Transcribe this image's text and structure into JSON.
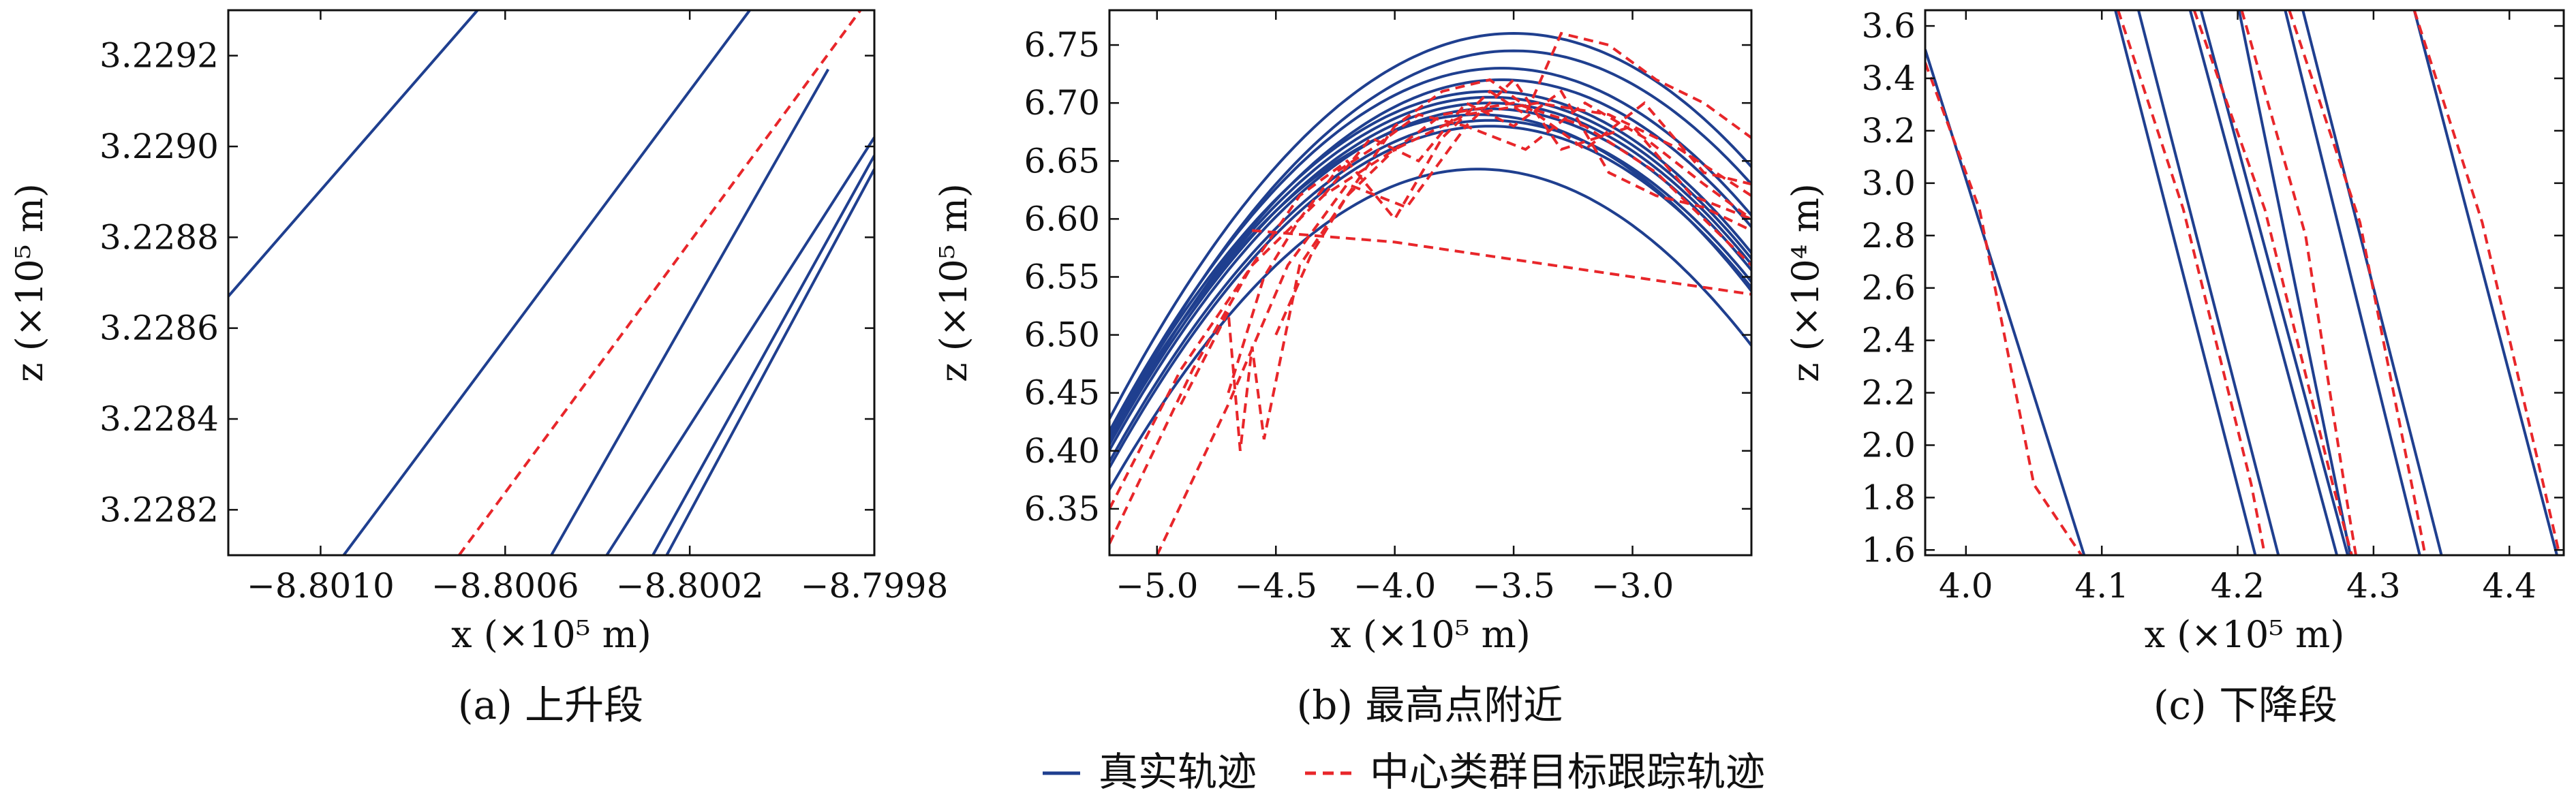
{
  "colors": {
    "true_track": "#1f3f8f",
    "center_track": "#e8262a",
    "axis": "#111111"
  },
  "legend": {
    "true_label": "真实轨迹",
    "center_label": "中心类群目标跟踪轨迹",
    "placement": "bottom-center"
  },
  "chart_data": [
    {
      "type": "line",
      "caption": "(a) 上升段",
      "xlabel": "x (×10⁵ m)",
      "ylabel": "z (×10⁵ m)",
      "xlim": [
        -8.8012,
        -8.7998
      ],
      "ylim": [
        3.2281,
        3.2293
      ],
      "xticks": [
        -8.801,
        -8.8006,
        -8.8002,
        -8.7998
      ],
      "xtick_labels": [
        "−8.8010",
        "−8.8006",
        "−8.8002",
        "−8.7998"
      ],
      "yticks": [
        3.2282,
        3.2284,
        3.2286,
        3.2288,
        3.229,
        3.2292
      ],
      "ytick_labels": [
        "3.2282",
        "3.2284",
        "3.2286",
        "3.2288",
        "3.2290",
        "3.2292"
      ],
      "grid": false,
      "series": [
        {
          "kind": "true",
          "x": [
            -8.8012,
            -8.80066
          ],
          "y": [
            3.22867,
            3.2293
          ]
        },
        {
          "kind": "true",
          "x": [
            -8.80095,
            -8.80007
          ],
          "y": [
            3.2281,
            3.2293
          ]
        },
        {
          "kind": "true",
          "x": [
            -8.8005,
            -8.7999
          ],
          "y": [
            3.2281,
            3.22917
          ]
        },
        {
          "kind": "true",
          "x": [
            -8.80038,
            -8.7998
          ],
          "y": [
            3.2281,
            3.22902
          ]
        },
        {
          "kind": "true",
          "x": [
            -8.80028,
            -8.7998
          ],
          "y": [
            3.2281,
            3.22898
          ]
        },
        {
          "kind": "true",
          "x": [
            -8.80025,
            -8.7998
          ],
          "y": [
            3.2281,
            3.22895
          ]
        },
        {
          "kind": "center",
          "x": [
            -8.8007,
            -8.79983
          ],
          "y": [
            3.2281,
            3.2293
          ]
        }
      ]
    },
    {
      "type": "line",
      "caption": "(b) 最高点附近",
      "xlabel": "x (×10⁵ m)",
      "ylabel": "z (×10⁵ m)",
      "xlim": [
        -5.2,
        -2.5
      ],
      "ylim": [
        6.31,
        6.78
      ],
      "xticks": [
        -5.0,
        -4.5,
        -4.0,
        -3.5,
        -3.0
      ],
      "xtick_labels": [
        "−5.0",
        "−4.5",
        "−4.0",
        "−3.5",
        "−3.0"
      ],
      "yticks": [
        6.35,
        6.4,
        6.45,
        6.5,
        6.55,
        6.6,
        6.65,
        6.7,
        6.75
      ],
      "ytick_labels": [
        "6.35",
        "6.40",
        "6.45",
        "6.50",
        "6.55",
        "6.60",
        "6.65",
        "6.70",
        "6.75"
      ],
      "grid": false,
      "true_parabolas": [
        {
          "peak_x": -3.5,
          "peak_z": 6.76
        },
        {
          "peak_x": -3.5,
          "peak_z": 6.745
        },
        {
          "peak_x": -3.55,
          "peak_z": 6.73
        },
        {
          "peak_x": -3.55,
          "peak_z": 6.72
        },
        {
          "peak_x": -3.6,
          "peak_z": 6.71
        },
        {
          "peak_x": -3.6,
          "peak_z": 6.705
        },
        {
          "peak_x": -3.6,
          "peak_z": 6.7
        },
        {
          "peak_x": -3.6,
          "peak_z": 6.695
        },
        {
          "peak_x": -3.65,
          "peak_z": 6.69
        },
        {
          "peak_x": -3.6,
          "peak_z": 6.685
        },
        {
          "peak_x": -3.6,
          "peak_z": 6.68
        },
        {
          "peak_x": -3.65,
          "peak_z": 6.643
        }
      ],
      "center_series": [
        {
          "x": [
            -5.2,
            -4.9,
            -4.6,
            -4.3,
            -4.0,
            -3.7,
            -3.4,
            -3.1,
            -2.8,
            -2.5
          ],
          "y": [
            6.35,
            6.47,
            6.56,
            6.62,
            6.66,
            6.69,
            6.7,
            6.69,
            6.66,
            6.62
          ]
        },
        {
          "x": [
            -5.2,
            -4.85,
            -4.6,
            -4.4,
            -4.2,
            -4.0,
            -3.8,
            -3.6,
            -3.45,
            -3.3,
            -3.1,
            -2.9,
            -2.7,
            -2.5
          ],
          "y": [
            6.32,
            6.47,
            6.56,
            6.62,
            6.65,
            6.6,
            6.67,
            6.71,
            6.69,
            6.76,
            6.75,
            6.72,
            6.7,
            6.67
          ]
        },
        {
          "x": [
            -5.0,
            -4.7,
            -4.45,
            -4.2,
            -3.95,
            -3.7,
            -3.45,
            -3.2,
            -2.95,
            -2.7,
            -2.5
          ],
          "y": [
            6.31,
            6.44,
            6.56,
            6.63,
            6.61,
            6.68,
            6.66,
            6.7,
            6.67,
            6.63,
            6.6
          ]
        },
        {
          "x": [
            -4.9,
            -4.7,
            -4.65,
            -4.6,
            -4.55,
            -4.4,
            -4.2,
            -4.0,
            -3.8,
            -3.5,
            -3.2,
            -2.9,
            -2.6,
            -2.5
          ],
          "y": [
            6.44,
            6.52,
            6.4,
            6.49,
            6.41,
            6.56,
            6.62,
            6.66,
            6.69,
            6.7,
            6.68,
            6.64,
            6.58,
            6.56
          ]
        },
        {
          "x": [
            -4.7,
            -4.55,
            -4.4,
            -4.25,
            -4.1,
            -3.9,
            -3.7,
            -3.5,
            -3.3,
            -3.0,
            -2.75,
            -2.5
          ],
          "y": [
            6.45,
            6.55,
            6.6,
            6.64,
            6.66,
            6.69,
            6.68,
            6.72,
            6.66,
            6.68,
            6.62,
            6.6
          ]
        },
        {
          "x": [
            -4.5,
            -4.35,
            -4.2,
            -4.0,
            -3.8,
            -3.6,
            -3.4,
            -3.2,
            -2.95,
            -2.7,
            -2.5
          ],
          "y": [
            6.5,
            6.57,
            6.62,
            6.68,
            6.71,
            6.72,
            6.69,
            6.66,
            6.7,
            6.64,
            6.63
          ]
        },
        {
          "x": [
            -4.6,
            -4.0,
            -3.0,
            -2.5
          ],
          "y": [
            6.59,
            6.58,
            6.55,
            6.535
          ]
        },
        {
          "x": [
            -4.3,
            -4.1,
            -3.9,
            -3.7,
            -3.5,
            -3.3,
            -3.1,
            -2.9,
            -2.7,
            -2.5
          ],
          "y": [
            6.62,
            6.67,
            6.65,
            6.7,
            6.68,
            6.71,
            6.64,
            6.62,
            6.61,
            6.59
          ]
        }
      ]
    },
    {
      "type": "line",
      "caption": "(c) 下降段",
      "xlabel": "x (×10⁵ m)",
      "ylabel": "z (×10⁴ m)",
      "xlim": [
        3.97,
        4.44
      ],
      "ylim": [
        1.58,
        3.66
      ],
      "xticks": [
        4.0,
        4.1,
        4.2,
        4.3,
        4.4
      ],
      "xtick_labels": [
        "4.0",
        "4.1",
        "4.2",
        "4.3",
        "4.4"
      ],
      "yticks": [
        1.6,
        1.8,
        2.0,
        2.2,
        2.4,
        2.6,
        2.8,
        3.0,
        3.2,
        3.4,
        3.6
      ],
      "ytick_labels": [
        "1.6",
        "1.8",
        "2.0",
        "2.2",
        "2.4",
        "2.6",
        "2.8",
        "3.0",
        "3.2",
        "3.4",
        "3.6"
      ],
      "grid": false,
      "series": [
        {
          "kind": "true",
          "x": [
            3.97,
            4.087
          ],
          "y": [
            3.51,
            1.58
          ]
        },
        {
          "kind": "true",
          "x": [
            4.11,
            4.213
          ],
          "y": [
            3.66,
            1.58
          ]
        },
        {
          "kind": "true",
          "x": [
            4.127,
            4.23
          ],
          "y": [
            3.66,
            1.58
          ]
        },
        {
          "kind": "true",
          "x": [
            4.165,
            4.273
          ],
          "y": [
            3.66,
            1.58
          ]
        },
        {
          "kind": "true",
          "x": [
            4.173,
            4.281
          ],
          "y": [
            3.66,
            1.58
          ]
        },
        {
          "kind": "true",
          "x": [
            4.201,
            4.283
          ],
          "y": [
            3.66,
            1.58
          ]
        },
        {
          "kind": "true",
          "x": [
            4.235,
            4.334
          ],
          "y": [
            3.66,
            1.58
          ]
        },
        {
          "kind": "true",
          "x": [
            4.248,
            4.35
          ],
          "y": [
            3.66,
            1.58
          ]
        },
        {
          "kind": "true",
          "x": [
            4.33,
            4.435
          ],
          "y": [
            3.66,
            1.58
          ]
        },
        {
          "kind": "center",
          "x": [
            3.97,
            4.01,
            4.05,
            4.085
          ],
          "y": [
            3.46,
            2.9,
            1.85,
            1.58
          ]
        },
        {
          "kind": "center",
          "x": [
            4.112,
            4.16,
            4.21,
            4.22
          ],
          "y": [
            3.66,
            2.9,
            1.85,
            1.58
          ]
        },
        {
          "kind": "center",
          "x": [
            4.168,
            4.22,
            4.27,
            4.284
          ],
          "y": [
            3.66,
            2.9,
            1.85,
            1.58
          ]
        },
        {
          "kind": "center",
          "x": [
            4.203,
            4.25,
            4.28,
            4.287
          ],
          "y": [
            3.66,
            2.8,
            1.8,
            1.58
          ]
        },
        {
          "kind": "center",
          "x": [
            4.238,
            4.29,
            4.33,
            4.338
          ],
          "y": [
            3.66,
            2.85,
            1.8,
            1.58
          ]
        },
        {
          "kind": "center",
          "x": [
            4.33,
            4.38,
            4.425,
            4.437
          ],
          "y": [
            3.66,
            2.85,
            1.85,
            1.58
          ]
        }
      ]
    }
  ]
}
